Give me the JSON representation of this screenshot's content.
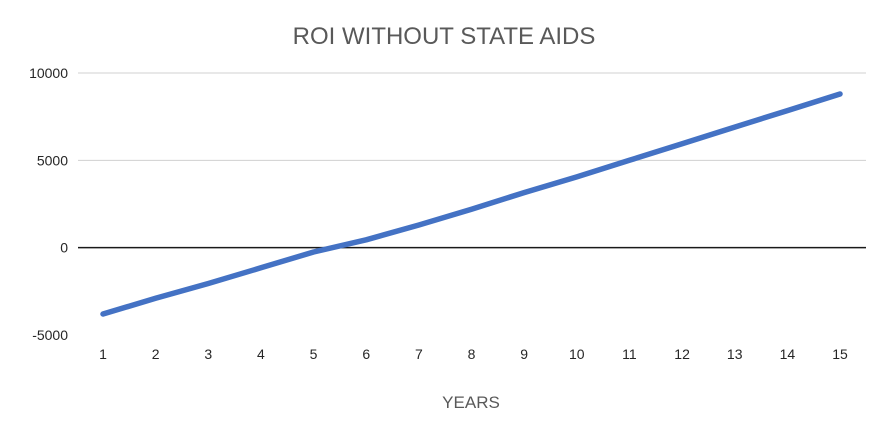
{
  "chart_data": {
    "type": "line",
    "title": "ROI WITHOUT STATE AIDS",
    "xlabel": "YEARS",
    "ylabel": "",
    "categories": [
      "1",
      "2",
      "3",
      "4",
      "5",
      "6",
      "7",
      "8",
      "9",
      "10",
      "11",
      "12",
      "13",
      "14",
      "15"
    ],
    "series": [
      {
        "values": [
          -3800,
          -2900,
          -2050,
          -1150,
          -250,
          450,
          1300,
          2200,
          3150,
          4050,
          5000,
          5950,
          6900,
          7850,
          8800
        ],
        "color": "#4472C4"
      }
    ],
    "ylim": [
      -5000,
      10000
    ],
    "yticks": [
      -5000,
      0,
      5000,
      10000
    ],
    "grid": true,
    "legend": "none"
  }
}
